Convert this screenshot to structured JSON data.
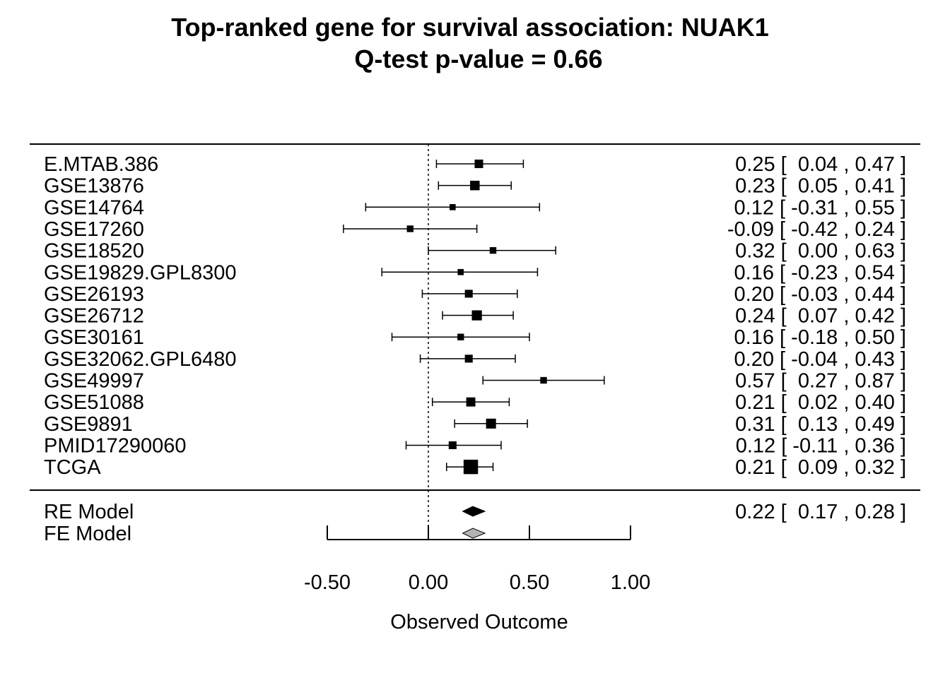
{
  "chart_data": {
    "type": "forest",
    "title": "Top-ranked gene for survival association: NUAK1",
    "subtitle": "Q-test p-value = 0.66",
    "xlabel": "Observed Outcome",
    "xlim": [
      -0.5,
      1.0
    ],
    "xticks": [
      "-0.50",
      "0.00",
      "0.50",
      "1.00"
    ],
    "xtick_values": [
      -0.5,
      0.0,
      0.5,
      1.0
    ],
    "reference_line": 0,
    "studies": [
      {
        "name": "E.MTAB.386",
        "estimate": 0.25,
        "lower": 0.04,
        "upper": 0.47,
        "weight": 1.8,
        "ci_text": "0.25 [  0.04 , 0.47 ]"
      },
      {
        "name": "GSE13876",
        "estimate": 0.23,
        "lower": 0.05,
        "upper": 0.41,
        "weight": 2.5,
        "ci_text": "0.23 [  0.05 , 0.41 ]"
      },
      {
        "name": "GSE14764",
        "estimate": 0.12,
        "lower": -0.31,
        "upper": 0.55,
        "weight": 0.6,
        "ci_text": "0.12 [ -0.31 , 0.55 ]"
      },
      {
        "name": "GSE17260",
        "estimate": -0.09,
        "lower": -0.42,
        "upper": 0.24,
        "weight": 0.8,
        "ci_text": "-0.09 [ -0.42 , 0.24 ]"
      },
      {
        "name": "GSE18520",
        "estimate": 0.32,
        "lower": 0.0,
        "upper": 0.63,
        "weight": 0.8,
        "ci_text": "0.32 [  0.00 , 0.63 ]"
      },
      {
        "name": "GSE19829.GPL8300",
        "estimate": 0.16,
        "lower": -0.23,
        "upper": 0.54,
        "weight": 0.6,
        "ci_text": "0.16 [ -0.23 , 0.54 ]"
      },
      {
        "name": "GSE26193",
        "estimate": 0.2,
        "lower": -0.03,
        "upper": 0.44,
        "weight": 1.4,
        "ci_text": "0.20 [ -0.03 , 0.44 ]"
      },
      {
        "name": "GSE26712",
        "estimate": 0.24,
        "lower": 0.07,
        "upper": 0.42,
        "weight": 2.9,
        "ci_text": "0.24 [  0.07 , 0.42 ]"
      },
      {
        "name": "GSE30161",
        "estimate": 0.16,
        "lower": -0.18,
        "upper": 0.5,
        "weight": 0.8,
        "ci_text": "0.16 [ -0.18 , 0.50 ]"
      },
      {
        "name": "GSE32062.GPL6480",
        "estimate": 0.2,
        "lower": -0.04,
        "upper": 0.43,
        "weight": 1.4,
        "ci_text": "0.20 [ -0.04 , 0.43 ]"
      },
      {
        "name": "GSE49997",
        "estimate": 0.57,
        "lower": 0.27,
        "upper": 0.87,
        "weight": 0.8,
        "ci_text": "0.57 [  0.27 , 0.87 ]"
      },
      {
        "name": "GSE51088",
        "estimate": 0.21,
        "lower": 0.02,
        "upper": 0.4,
        "weight": 2.2,
        "ci_text": "0.21 [  0.02 , 0.40 ]"
      },
      {
        "name": "GSE9891",
        "estimate": 0.31,
        "lower": 0.13,
        "upper": 0.49,
        "weight": 2.8,
        "ci_text": "0.31 [  0.13 , 0.49 ]"
      },
      {
        "name": "PMID17290060",
        "estimate": 0.12,
        "lower": -0.11,
        "upper": 0.36,
        "weight": 1.4,
        "ci_text": "0.12 [ -0.11 , 0.36 ]"
      },
      {
        "name": "TCGA",
        "estimate": 0.21,
        "lower": 0.09,
        "upper": 0.32,
        "weight": 7.5,
        "ci_text": "0.21 [  0.09 , 0.32 ]"
      }
    ],
    "models": [
      {
        "name": "RE Model",
        "estimate": 0.22,
        "lower": 0.17,
        "upper": 0.28,
        "color": "#000000",
        "ci_text": "0.22 [  0.17 , 0.28 ]"
      },
      {
        "name": "FE Model",
        "estimate": 0.22,
        "lower": 0.17,
        "upper": 0.28,
        "color": "#b3b3b3",
        "ci_text": ""
      }
    ],
    "colors": {
      "ink": "#000000",
      "fe_fill": "#b3b3b3",
      "background": "#ffffff"
    }
  }
}
